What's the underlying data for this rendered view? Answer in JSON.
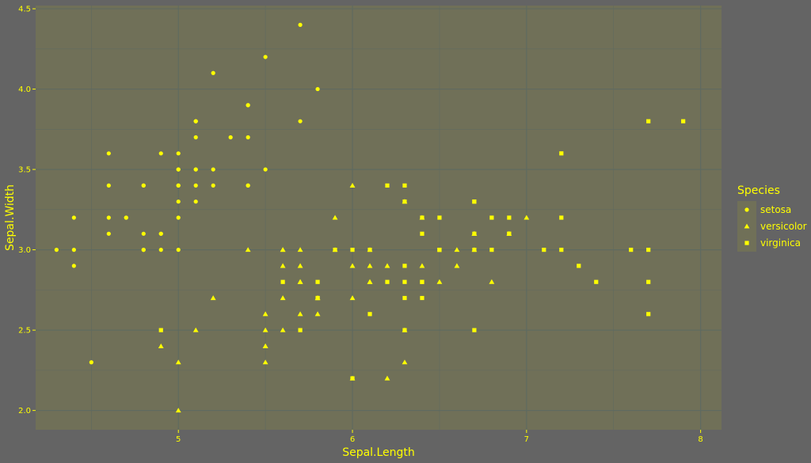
{
  "chart_data": {
    "type": "scatter",
    "xlabel": "Sepal.Length",
    "ylabel": "Sepal.Width",
    "xlim": [
      4.18,
      8.12
    ],
    "ylim": [
      1.88,
      4.52
    ],
    "x_ticks": [
      5,
      6,
      7,
      8
    ],
    "x_tick_labels": [
      "5",
      "6",
      "7",
      "8"
    ],
    "y_ticks": [
      2.0,
      2.5,
      3.0,
      3.5,
      4.0,
      4.5
    ],
    "y_tick_labels": [
      "2.0",
      "2.5",
      "3.0",
      "3.5",
      "4.0",
      "4.5"
    ],
    "grid": true,
    "legend": {
      "title": "Species",
      "position": "right"
    },
    "colors": {
      "background": "#646464",
      "panel": "#707058",
      "grid": "#5f6a60",
      "points": "#ffff00"
    },
    "series": [
      {
        "name": "setosa",
        "shape": "circle",
        "x": [
          5.1,
          4.9,
          4.7,
          4.6,
          5.0,
          5.4,
          4.6,
          5.0,
          4.4,
          4.9,
          5.4,
          4.8,
          4.8,
          4.3,
          5.8,
          5.7,
          5.4,
          5.1,
          5.7,
          5.1,
          5.4,
          5.1,
          4.6,
          5.1,
          4.8,
          5.0,
          5.0,
          5.2,
          5.2,
          4.7,
          4.8,
          5.4,
          5.2,
          5.5,
          4.9,
          5.0,
          5.5,
          4.9,
          4.4,
          5.1,
          5.0,
          4.5,
          4.4,
          5.0,
          5.1,
          4.8,
          5.1,
          4.6,
          5.3,
          5.0
        ],
        "y": [
          3.5,
          3.0,
          3.2,
          3.1,
          3.6,
          3.9,
          3.4,
          3.4,
          2.9,
          3.1,
          3.7,
          3.4,
          3.0,
          3.0,
          4.0,
          4.4,
          3.9,
          3.5,
          3.8,
          3.8,
          3.4,
          3.7,
          3.6,
          3.3,
          3.4,
          3.0,
          3.4,
          3.5,
          3.4,
          3.2,
          3.1,
          3.4,
          4.1,
          4.2,
          3.1,
          3.2,
          3.5,
          3.6,
          3.0,
          3.4,
          3.5,
          2.3,
          3.2,
          3.5,
          3.8,
          3.0,
          3.8,
          3.2,
          3.7,
          3.3
        ]
      },
      {
        "name": "versicolor",
        "shape": "triangle",
        "x": [
          7.0,
          6.4,
          6.9,
          5.5,
          6.5,
          5.7,
          6.3,
          4.9,
          6.6,
          5.2,
          5.0,
          5.9,
          6.0,
          6.1,
          5.6,
          6.7,
          5.6,
          5.8,
          6.2,
          5.6,
          5.9,
          6.1,
          6.3,
          6.1,
          6.4,
          6.6,
          6.8,
          6.7,
          6.0,
          5.7,
          5.5,
          5.5,
          5.8,
          6.0,
          5.4,
          6.0,
          6.7,
          6.3,
          5.6,
          5.5,
          5.5,
          6.1,
          5.8,
          5.0,
          5.6,
          5.7,
          5.7,
          6.2,
          5.1,
          5.7
        ],
        "y": [
          3.2,
          3.2,
          3.1,
          2.3,
          2.8,
          2.8,
          3.3,
          2.4,
          2.9,
          2.7,
          2.0,
          3.0,
          2.2,
          2.9,
          2.9,
          3.1,
          3.0,
          2.7,
          2.2,
          2.5,
          3.2,
          2.8,
          2.5,
          2.8,
          2.9,
          3.0,
          2.8,
          3.0,
          2.9,
          2.6,
          2.4,
          2.4,
          2.7,
          2.7,
          3.0,
          3.4,
          3.1,
          2.3,
          3.0,
          2.5,
          2.6,
          3.0,
          2.6,
          2.3,
          2.7,
          3.0,
          2.9,
          2.9,
          2.5,
          2.8
        ]
      },
      {
        "name": "virginica",
        "shape": "square",
        "x": [
          6.3,
          5.8,
          7.1,
          6.3,
          6.5,
          7.6,
          4.9,
          7.3,
          6.7,
          7.2,
          6.5,
          6.4,
          6.8,
          5.7,
          5.8,
          6.4,
          6.5,
          7.7,
          7.7,
          6.0,
          6.9,
          5.6,
          7.7,
          6.3,
          6.7,
          7.2,
          6.2,
          6.1,
          6.4,
          7.2,
          7.4,
          7.9,
          6.4,
          6.3,
          6.1,
          7.7,
          6.3,
          6.4,
          6.0,
          6.9,
          6.7,
          6.9,
          5.8,
          6.8,
          6.7,
          6.7,
          6.3,
          6.5,
          6.2,
          5.9
        ],
        "y": [
          3.3,
          2.7,
          3.0,
          2.9,
          3.0,
          3.0,
          2.5,
          2.9,
          2.5,
          3.6,
          3.2,
          2.7,
          3.0,
          2.5,
          2.8,
          3.2,
          3.0,
          3.8,
          2.6,
          2.2,
          3.2,
          2.8,
          2.8,
          2.7,
          3.3,
          3.2,
          2.8,
          3.0,
          2.8,
          3.0,
          2.8,
          3.8,
          2.8,
          2.8,
          2.6,
          3.0,
          3.4,
          3.1,
          3.0,
          3.1,
          3.1,
          3.1,
          2.7,
          3.2,
          3.3,
          3.0,
          2.5,
          3.0,
          3.4,
          3.0
        ]
      }
    ]
  }
}
